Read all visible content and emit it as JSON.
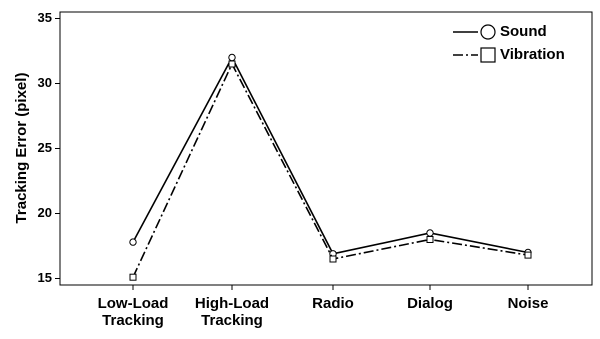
{
  "chart_data": {
    "type": "line",
    "title": "",
    "xlabel": "",
    "ylabel": "Tracking Error (pixel)",
    "categories": [
      [
        "Low-Load",
        "Tracking"
      ],
      [
        "High-Load",
        "Tracking"
      ],
      [
        "Radio"
      ],
      [
        "Dialog"
      ],
      [
        "Noise"
      ]
    ],
    "ylim": [
      14.5,
      35.5
    ],
    "yticks": [
      15,
      20,
      25,
      30,
      35
    ],
    "grid": false,
    "legend_position": "top-right",
    "series": [
      {
        "name": "Sound",
        "marker": "circle",
        "line_style": "solid",
        "color": "#000000",
        "values": [
          17.8,
          32.0,
          16.9,
          18.5,
          17.0
        ]
      },
      {
        "name": "Vibration",
        "marker": "square",
        "line_style": "dash-dot",
        "color": "#000000",
        "values": [
          15.1,
          31.5,
          16.5,
          18.0,
          16.8
        ]
      }
    ]
  }
}
